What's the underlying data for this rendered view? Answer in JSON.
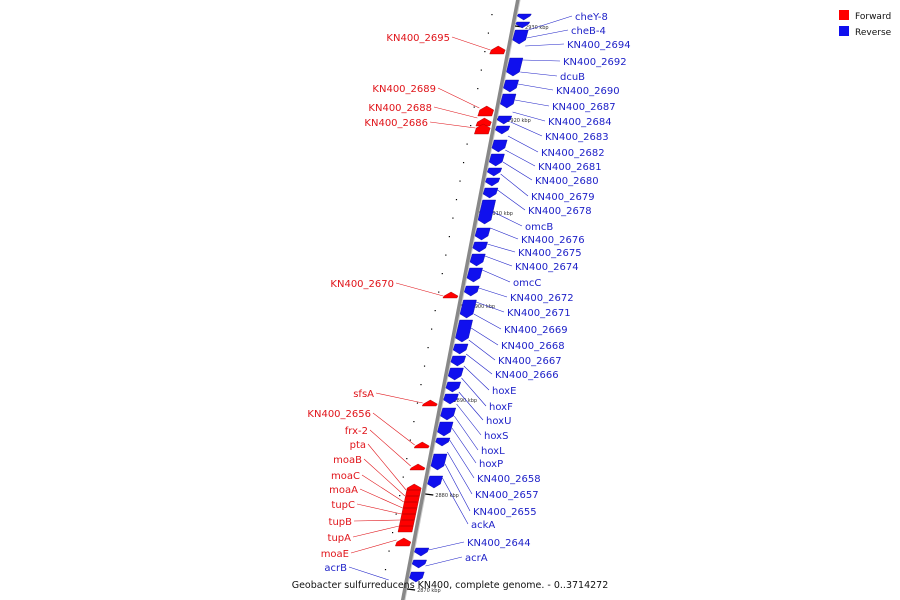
{
  "caption": "Geobacter sulfurreducens KN400, complete genome. - 0..3714272",
  "colors": {
    "forward": "#ff0000",
    "reverse": "#1010ee",
    "forward_text": "#e0141a",
    "reverse_text": "#1f22c8",
    "backbone": "#888888"
  },
  "legend": [
    {
      "name": "Forward",
      "color": "#ff0000"
    },
    {
      "name": "Reverse",
      "color": "#1010ee"
    }
  ],
  "ticks": [
    "2930 kbp",
    "2920 kbp",
    "2910 kbp",
    "2900 kbp",
    "2890 kbp",
    "2880 kbp",
    "2870 kbp"
  ],
  "forward_genes": [
    "KN400_2695",
    "KN400_2689",
    "KN400_2688",
    "KN400_2686",
    "KN400_2670",
    "sfsA",
    "KN400_2656",
    "frx-2",
    "pta",
    "moaB",
    "moaC",
    "moaA",
    "tupC",
    "tupB",
    "tupA",
    "moaE",
    "acrB"
  ],
  "reverse_genes": [
    "cheY-8",
    "cheB-4",
    "KN400_2694",
    "KN400_2692",
    "dcuB",
    "KN400_2690",
    "KN400_2687",
    "KN400_2684",
    "KN400_2683",
    "KN400_2682",
    "KN400_2681",
    "KN400_2680",
    "KN400_2679",
    "KN400_2678",
    "omcB",
    "KN400_2676",
    "KN400_2675",
    "KN400_2674",
    "omcC",
    "KN400_2672",
    "KN400_2671",
    "KN400_2669",
    "KN400_2668",
    "KN400_2667",
    "KN400_2666",
    "hoxE",
    "hoxF",
    "hoxU",
    "hoxS",
    "hoxL",
    "hoxP",
    "KN400_2658",
    "KN400_2657",
    "KN400_2655",
    "ackA",
    "KN400_2644",
    "acrA"
  ]
}
